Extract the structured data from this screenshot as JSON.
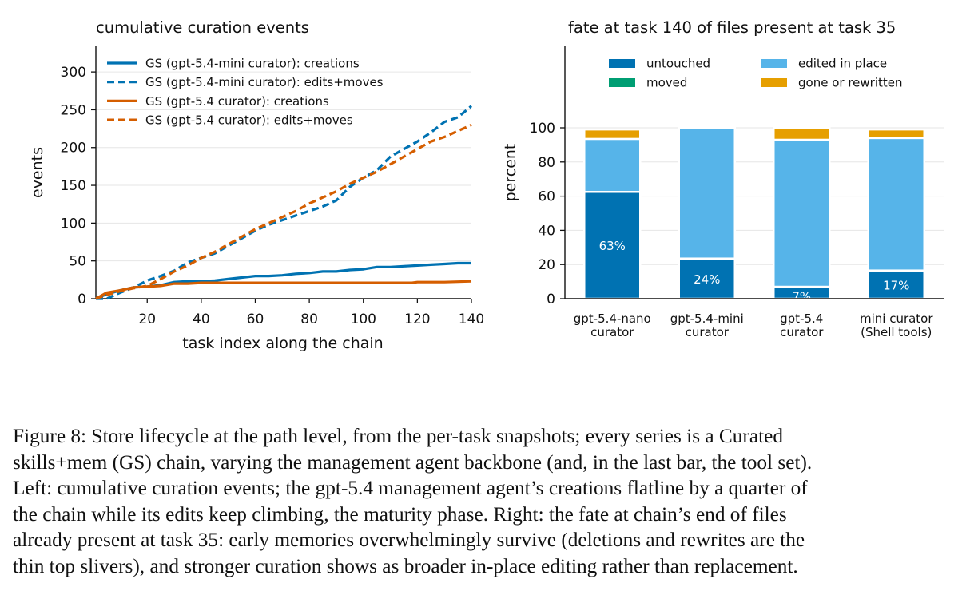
{
  "chart_data": [
    {
      "type": "line",
      "title": "cumulative curation events",
      "xlabel": "task index along the chain",
      "ylabel": "events",
      "xlim": [
        1,
        140
      ],
      "ylim": [
        0,
        335
      ],
      "xticks": [
        20,
        40,
        60,
        80,
        100,
        120,
        140
      ],
      "yticks": [
        0,
        50,
        100,
        150,
        200,
        250,
        300
      ],
      "grid": "horizontal",
      "legend_position": "top-left",
      "series": [
        {
          "name": "GS (gpt-5.4-mini curator): creations",
          "color": "#0072b2",
          "style": "solid",
          "points": [
            [
              1,
              0
            ],
            [
              5,
              6
            ],
            [
              10,
              11
            ],
            [
              15,
              15
            ],
            [
              20,
              16
            ],
            [
              25,
              18
            ],
            [
              30,
              22
            ],
            [
              35,
              23
            ],
            [
              40,
              23
            ],
            [
              45,
              24
            ],
            [
              50,
              26
            ],
            [
              55,
              28
            ],
            [
              60,
              30
            ],
            [
              65,
              30
            ],
            [
              70,
              31
            ],
            [
              75,
              33
            ],
            [
              80,
              34
            ],
            [
              85,
              36
            ],
            [
              90,
              36
            ],
            [
              95,
              38
            ],
            [
              100,
              39
            ],
            [
              105,
              42
            ],
            [
              110,
              42
            ],
            [
              115,
              43
            ],
            [
              120,
              44
            ],
            [
              125,
              45
            ],
            [
              130,
              46
            ],
            [
              135,
              47
            ],
            [
              140,
              47
            ]
          ]
        },
        {
          "name": "GS (gpt-5.4-mini curator): edits+moves",
          "color": "#0072b2",
          "style": "dashed",
          "points": [
            [
              1,
              0
            ],
            [
              5,
              0
            ],
            [
              10,
              8
            ],
            [
              15,
              15
            ],
            [
              20,
              24
            ],
            [
              25,
              30
            ],
            [
              30,
              37
            ],
            [
              35,
              48
            ],
            [
              40,
              54
            ],
            [
              45,
              60
            ],
            [
              50,
              70
            ],
            [
              55,
              80
            ],
            [
              60,
              90
            ],
            [
              65,
              98
            ],
            [
              70,
              104
            ],
            [
              75,
              110
            ],
            [
              80,
              116
            ],
            [
              85,
              122
            ],
            [
              90,
              130
            ],
            [
              95,
              148
            ],
            [
              100,
              160
            ],
            [
              105,
              170
            ],
            [
              110,
              188
            ],
            [
              115,
              198
            ],
            [
              120,
              208
            ],
            [
              125,
              220
            ],
            [
              130,
              234
            ],
            [
              135,
              240
            ],
            [
              140,
              255
            ]
          ]
        },
        {
          "name": "GS (gpt-5.4 curator): creations",
          "color": "#d55e00",
          "style": "solid",
          "points": [
            [
              1,
              0
            ],
            [
              5,
              8
            ],
            [
              10,
              11
            ],
            [
              15,
              15
            ],
            [
              20,
              16
            ],
            [
              25,
              17
            ],
            [
              30,
              20
            ],
            [
              35,
              20
            ],
            [
              40,
              21
            ],
            [
              50,
              21
            ],
            [
              60,
              21
            ],
            [
              70,
              21
            ],
            [
              80,
              21
            ],
            [
              90,
              21
            ],
            [
              100,
              21
            ],
            [
              110,
              21
            ],
            [
              118,
              21
            ],
            [
              120,
              22
            ],
            [
              130,
              22
            ],
            [
              140,
              23
            ]
          ]
        },
        {
          "name": "GS (gpt-5.4 curator): edits+moves",
          "color": "#d55e00",
          "style": "dashed",
          "points": [
            [
              1,
              0
            ],
            [
              5,
              5
            ],
            [
              10,
              10
            ],
            [
              15,
              14
            ],
            [
              20,
              17
            ],
            [
              25,
              26
            ],
            [
              30,
              36
            ],
            [
              35,
              44
            ],
            [
              40,
              54
            ],
            [
              45,
              62
            ],
            [
              50,
              72
            ],
            [
              55,
              82
            ],
            [
              60,
              92
            ],
            [
              65,
              100
            ],
            [
              70,
              108
            ],
            [
              75,
              116
            ],
            [
              80,
              126
            ],
            [
              85,
              134
            ],
            [
              90,
              142
            ],
            [
              95,
              152
            ],
            [
              100,
              160
            ],
            [
              105,
              168
            ],
            [
              110,
              178
            ],
            [
              115,
              188
            ],
            [
              120,
              198
            ],
            [
              125,
              208
            ],
            [
              130,
              214
            ],
            [
              135,
              222
            ],
            [
              140,
              230
            ]
          ]
        }
      ]
    },
    {
      "type": "bar",
      "stacked": true,
      "title": "fate at task 140 of files present at task 35",
      "xlabel": "",
      "ylabel": "percent",
      "ylim": [
        0,
        100
      ],
      "yticks": [
        0,
        20,
        40,
        60,
        80,
        100
      ],
      "grid": "horizontal",
      "legend_position": "top",
      "categories": [
        [
          "gpt-5.4-nano",
          "curator"
        ],
        [
          "gpt-5.4-mini",
          "curator"
        ],
        [
          "gpt-5.4",
          "curator"
        ],
        [
          "mini curator",
          "(Shell tools)"
        ]
      ],
      "series": [
        {
          "name": "untouched",
          "color": "#0072b2",
          "values": [
            62.5,
            23.5,
            7,
            16.5
          ],
          "labels": [
            "63%",
            "24%",
            "7%",
            "17%"
          ]
        },
        {
          "name": "edited in place",
          "color": "#56b4e9",
          "values": [
            31,
            76.5,
            86,
            77.5
          ]
        },
        {
          "name": "moved",
          "color": "#009e73",
          "values": [
            0,
            0,
            0,
            0
          ]
        },
        {
          "name": "gone or rewritten",
          "color": "#e69f00",
          "values": [
            5.5,
            0,
            7,
            5
          ]
        }
      ]
    }
  ],
  "caption": {
    "lines": [
      "Figure 8: Store lifecycle at the path level, from the per-task snapshots; every series is a Curated",
      "skills+mem (GS) chain, varying the management agent backbone (and, in the last bar, the tool set).",
      "Left: cumulative curation events; the gpt-5.4 management agent’s creations flatline by a quarter of",
      "the chain while its edits keep climbing, the maturity phase.  Right: the fate at chain’s end of files",
      "already present at task 35: early memories overwhelmingly survive (deletions and rewrites are the",
      "thin top slivers), and stronger curation shows as broader in-place editing rather than replacement."
    ]
  }
}
